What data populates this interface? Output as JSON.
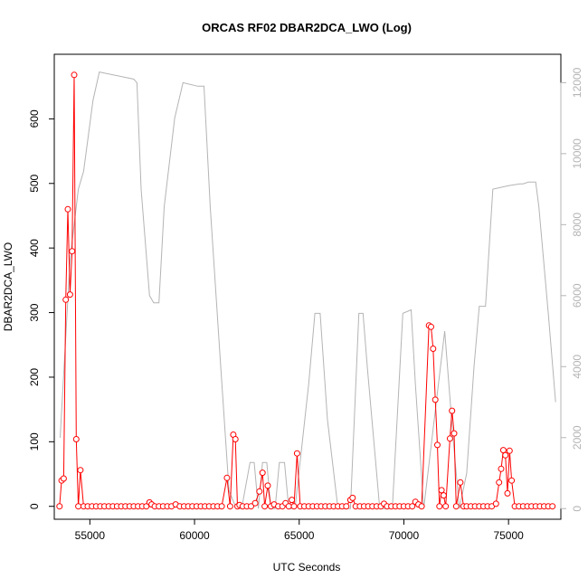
{
  "chart_data": {
    "type": "line",
    "title": "ORCAS RF02 DBAR2DCA_LWO (Log)",
    "xlabel": "UTC Seconds",
    "ylabel": "DBAR2DCA_LWO",
    "xlim": [
      53300,
      77500
    ],
    "ylim": [
      -20,
      700
    ],
    "y2lim": [
      -300,
      12800
    ],
    "x_ticks": [
      55000,
      60000,
      65000,
      70000,
      75000
    ],
    "y_ticks": [
      0,
      100,
      200,
      300,
      400,
      500,
      600
    ],
    "y2_ticks": [
      0,
      2000,
      4000,
      6000,
      8000,
      10000,
      12000
    ],
    "grid": false,
    "colors": {
      "primary": "#ff0000",
      "secondary": "#b4b4b4"
    },
    "series": [
      {
        "role": "primary",
        "marker": "open-circle",
        "points": [
          [
            53550,
            0
          ],
          [
            53650,
            40
          ],
          [
            53750,
            43
          ],
          [
            53850,
            320
          ],
          [
            53950,
            460
          ],
          [
            54050,
            328
          ],
          [
            54150,
            395
          ],
          [
            54250,
            668
          ],
          [
            54350,
            104
          ],
          [
            54450,
            0
          ],
          [
            54550,
            56
          ],
          [
            54700,
            0
          ],
          [
            54900,
            0
          ],
          [
            55100,
            0
          ],
          [
            55300,
            0
          ],
          [
            55500,
            0
          ],
          [
            55700,
            0
          ],
          [
            55900,
            0
          ],
          [
            56100,
            0
          ],
          [
            56300,
            0
          ],
          [
            56500,
            0
          ],
          [
            56700,
            0
          ],
          [
            56900,
            0
          ],
          [
            57100,
            0
          ],
          [
            57300,
            0
          ],
          [
            57500,
            0
          ],
          [
            57700,
            0
          ],
          [
            57850,
            6
          ],
          [
            57950,
            3
          ],
          [
            58100,
            0
          ],
          [
            58300,
            0
          ],
          [
            58500,
            0
          ],
          [
            58700,
            0
          ],
          [
            58900,
            0
          ],
          [
            59100,
            3
          ],
          [
            59300,
            0
          ],
          [
            59500,
            0
          ],
          [
            59700,
            0
          ],
          [
            59900,
            0
          ],
          [
            60100,
            0
          ],
          [
            60300,
            0
          ],
          [
            60500,
            0
          ],
          [
            60700,
            0
          ],
          [
            60900,
            0
          ],
          [
            61100,
            0
          ],
          [
            61300,
            0
          ],
          [
            61550,
            44
          ],
          [
            61700,
            0
          ],
          [
            61850,
            111
          ],
          [
            61950,
            104
          ],
          [
            62050,
            0
          ],
          [
            62150,
            2
          ],
          [
            62300,
            0
          ],
          [
            62500,
            0
          ],
          [
            62700,
            0
          ],
          [
            62900,
            5
          ],
          [
            63100,
            23
          ],
          [
            63250,
            52
          ],
          [
            63350,
            0
          ],
          [
            63500,
            32
          ],
          [
            63650,
            0
          ],
          [
            63800,
            3
          ],
          [
            64000,
            0
          ],
          [
            64200,
            0
          ],
          [
            64350,
            5
          ],
          [
            64500,
            0
          ],
          [
            64650,
            10
          ],
          [
            64750,
            0
          ],
          [
            64900,
            82
          ],
          [
            65050,
            0
          ],
          [
            65250,
            0
          ],
          [
            65450,
            0
          ],
          [
            65650,
            0
          ],
          [
            65850,
            0
          ],
          [
            66050,
            0
          ],
          [
            66250,
            0
          ],
          [
            66450,
            0
          ],
          [
            66650,
            0
          ],
          [
            66850,
            0
          ],
          [
            67050,
            0
          ],
          [
            67250,
            0
          ],
          [
            67450,
            10
          ],
          [
            67550,
            13
          ],
          [
            67700,
            0
          ],
          [
            67900,
            0
          ],
          [
            68100,
            0
          ],
          [
            68300,
            0
          ],
          [
            68500,
            0
          ],
          [
            68700,
            0
          ],
          [
            68900,
            0
          ],
          [
            69050,
            4
          ],
          [
            69200,
            0
          ],
          [
            69400,
            0
          ],
          [
            69600,
            0
          ],
          [
            69800,
            0
          ],
          [
            70000,
            0
          ],
          [
            70200,
            0
          ],
          [
            70400,
            0
          ],
          [
            70550,
            7
          ],
          [
            70700,
            3
          ],
          [
            70850,
            0
          ],
          [
            71200,
            280
          ],
          [
            71300,
            278
          ],
          [
            71400,
            244
          ],
          [
            71500,
            165
          ],
          [
            71600,
            95
          ],
          [
            71700,
            0
          ],
          [
            71800,
            25
          ],
          [
            71900,
            17
          ],
          [
            72000,
            0
          ],
          [
            72200,
            105
          ],
          [
            72300,
            148
          ],
          [
            72400,
            113
          ],
          [
            72500,
            0
          ],
          [
            72700,
            37
          ],
          [
            72850,
            0
          ],
          [
            73000,
            0
          ],
          [
            73200,
            0
          ],
          [
            73400,
            0
          ],
          [
            73600,
            0
          ],
          [
            73800,
            0
          ],
          [
            74000,
            0
          ],
          [
            74200,
            0
          ],
          [
            74400,
            4
          ],
          [
            74550,
            37
          ],
          [
            74650,
            58
          ],
          [
            74750,
            87
          ],
          [
            74850,
            79
          ],
          [
            74950,
            20
          ],
          [
            75050,
            86
          ],
          [
            75150,
            40
          ],
          [
            75300,
            0
          ],
          [
            75500,
            0
          ],
          [
            75700,
            0
          ],
          [
            75900,
            0
          ],
          [
            76100,
            0
          ],
          [
            76300,
            0
          ],
          [
            76500,
            0
          ],
          [
            76700,
            0
          ],
          [
            76900,
            0
          ],
          [
            77100,
            0
          ]
        ]
      },
      {
        "role": "secondary",
        "axis": "right",
        "marker": "none",
        "points": [
          [
            53580,
            2000
          ],
          [
            54050,
            7000
          ],
          [
            54350,
            8500
          ],
          [
            54450,
            9000
          ],
          [
            54700,
            9500
          ],
          [
            55150,
            11500
          ],
          [
            55450,
            12300
          ],
          [
            57100,
            12100
          ],
          [
            57250,
            12000
          ],
          [
            57450,
            9000
          ],
          [
            57850,
            6000
          ],
          [
            58050,
            5800
          ],
          [
            58300,
            5800
          ],
          [
            58550,
            8500
          ],
          [
            59050,
            11000
          ],
          [
            59450,
            12000
          ],
          [
            60150,
            11900
          ],
          [
            60450,
            11900
          ],
          [
            60750,
            8500
          ],
          [
            61250,
            4000
          ],
          [
            61650,
            500
          ],
          [
            62000,
            0
          ],
          [
            62250,
            0
          ],
          [
            62650,
            1300
          ],
          [
            62850,
            1300
          ],
          [
            63050,
            0
          ],
          [
            63250,
            1300
          ],
          [
            63450,
            1300
          ],
          [
            63650,
            0
          ],
          [
            63850,
            0
          ],
          [
            64050,
            1300
          ],
          [
            64300,
            1300
          ],
          [
            64500,
            0
          ],
          [
            64800,
            0
          ],
          [
            65450,
            3500
          ],
          [
            65750,
            5500
          ],
          [
            66000,
            5500
          ],
          [
            66350,
            2500
          ],
          [
            66850,
            0
          ],
          [
            67450,
            0
          ],
          [
            67850,
            5500
          ],
          [
            68050,
            5500
          ],
          [
            68250,
            4000
          ],
          [
            68850,
            0
          ],
          [
            69450,
            0
          ],
          [
            69950,
            5500
          ],
          [
            70350,
            5600
          ],
          [
            70550,
            3500
          ],
          [
            70950,
            0
          ],
          [
            71450,
            2500
          ],
          [
            71950,
            5000
          ],
          [
            72350,
            2000
          ],
          [
            72650,
            0
          ],
          [
            73000,
            1000
          ],
          [
            73350,
            4000
          ],
          [
            73600,
            5700
          ],
          [
            73900,
            5700
          ],
          [
            74250,
            9000
          ],
          [
            75000,
            9100
          ],
          [
            75550,
            9150
          ],
          [
            75700,
            9150
          ],
          [
            75950,
            9200
          ],
          [
            76300,
            9200
          ],
          [
            76450,
            8500
          ],
          [
            76900,
            5500
          ],
          [
            77250,
            3000
          ]
        ]
      }
    ]
  }
}
